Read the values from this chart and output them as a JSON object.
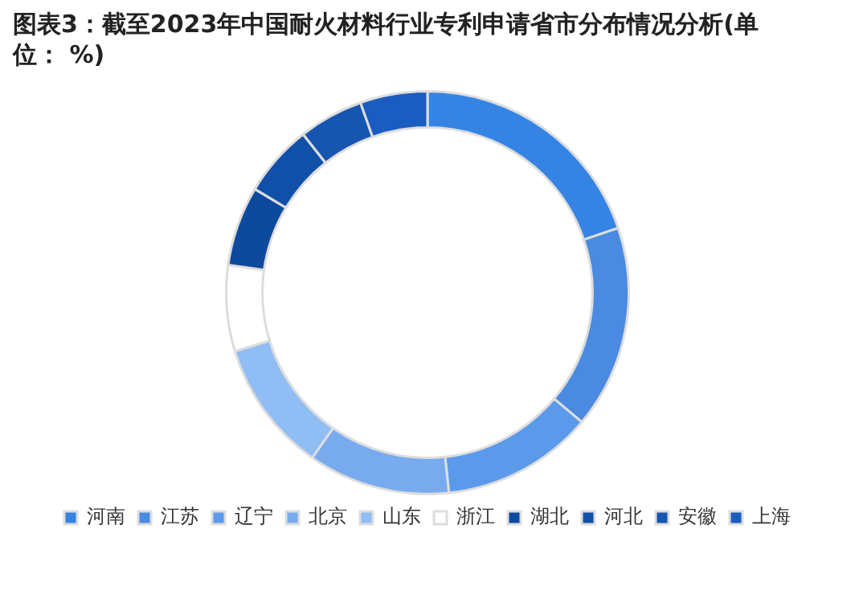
{
  "chart_data": {
    "type": "donut",
    "title": "图表3：截至2023年中国耐火材料行业专利申请省市分布情况分析(单位： %)",
    "categories": [
      "河南",
      "江苏",
      "辽宁",
      "北京",
      "山东",
      "浙江",
      "湖北",
      "河北",
      "安徽",
      "上海"
    ],
    "values": [
      19.8,
      16.3,
      12.2,
      11.4,
      10.6,
      6.9,
      6.4,
      5.8,
      5.2,
      5.4
    ],
    "colors": [
      "#3584e4",
      "#4a8ae0",
      "#5b9aeb",
      "#78aaee",
      "#90bdf3",
      "#ffffff",
      "#0d4a9e",
      "#1150a8",
      "#1655b0",
      "#1a5cc0"
    ],
    "legend": "bottom"
  }
}
